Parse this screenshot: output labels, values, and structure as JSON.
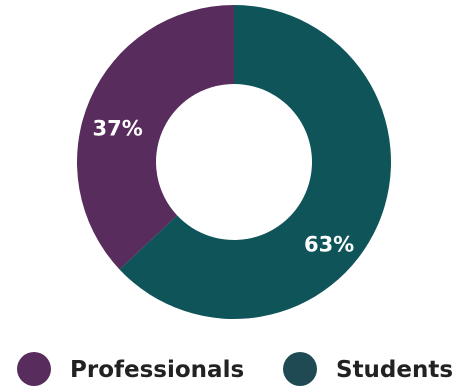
{
  "chart_data": {
    "type": "pie",
    "donut": true,
    "title": "",
    "categories": [
      "Professionals",
      "Students"
    ],
    "values": [
      37,
      63
    ],
    "labels": [
      "37%",
      "63%"
    ],
    "colors": [
      "#582c5d",
      "#0e5459"
    ],
    "legend": {
      "position": "bottom",
      "items": [
        {
          "label": "Professionals",
          "color": "#582c5d"
        },
        {
          "label": "Students",
          "color": "#1f4a53"
        }
      ]
    }
  }
}
